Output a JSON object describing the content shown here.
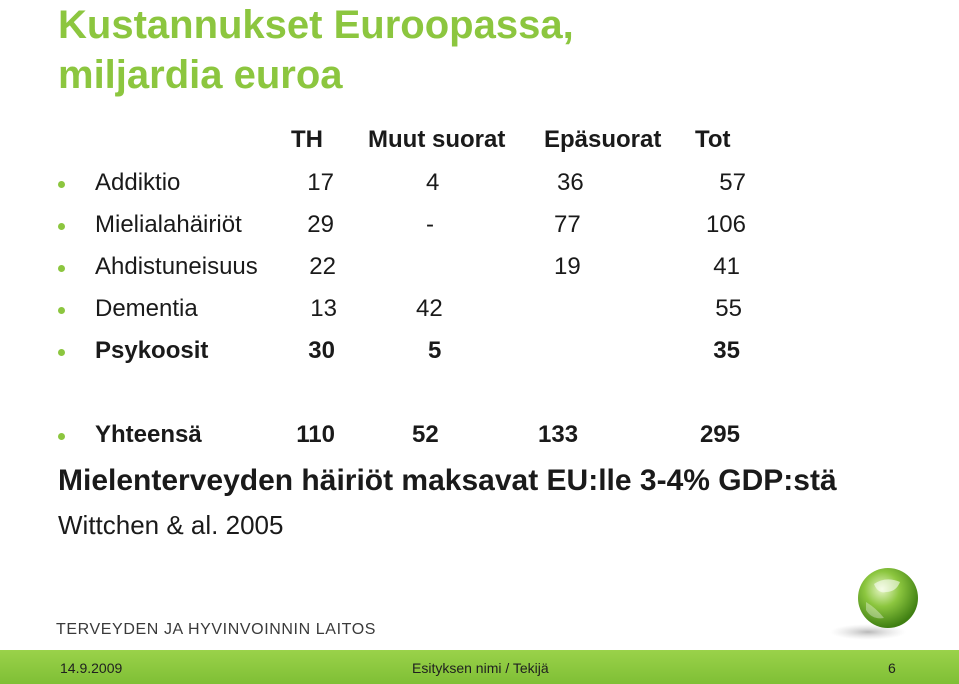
{
  "slide": {
    "title_line1": "Kustannukset Euroopassa,",
    "title_line2": "miljardia euroa",
    "columns": [
      "TH",
      "Muut suorat",
      "Epäsuorat",
      "Tot"
    ],
    "rows": [
      {
        "label": "Addiktio",
        "th": "17",
        "muut": "4",
        "epasuorat": "36",
        "tot": "57",
        "bold": false
      },
      {
        "label": "Mielialahäiriöt",
        "th": "29",
        "muut": "-",
        "epasuorat": "77",
        "tot": "106",
        "bold": false
      },
      {
        "label": "Ahdistuneisuus",
        "th": "22",
        "muut": "",
        "epasuorat": "19",
        "tot": "41",
        "bold": false
      },
      {
        "label": "Dementia",
        "th": "13",
        "muut": "42",
        "epasuorat": "",
        "tot": "55",
        "bold": false
      },
      {
        "label": "Psykoosit",
        "th": "30",
        "muut": "5",
        "epasuorat": "",
        "tot": "35",
        "bold": true
      }
    ],
    "total": {
      "label": "Yhteensä",
      "th": "110",
      "muut": "52",
      "epasuorat": "133",
      "tot": "295"
    },
    "summary": "Mielenterveyden häiriöt maksavat EU:lle 3-4% GDP:stä",
    "source": "Wittchen & al. 2005",
    "org_name": "TERVEYDEN JA HYVINVOINNIN LAITOS"
  },
  "footer": {
    "date": "14.9.2009",
    "presentation": "Esityksen nimi / Tekijä",
    "page": "6"
  },
  "colors": {
    "accent": "#8cc63f",
    "footer_bar": "#8cc63f"
  }
}
